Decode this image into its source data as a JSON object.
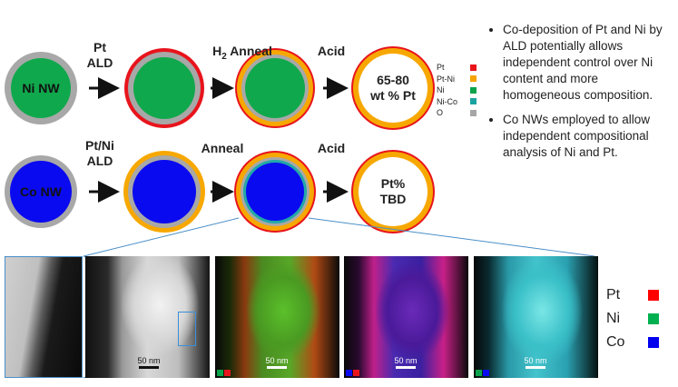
{
  "row1": {
    "start_label": "Ni NW",
    "step1": [
      "Pt",
      "ALD"
    ],
    "step2": "Anneal",
    "step2_prefix": "H",
    "step2_sub": "2",
    "step3": "Acid",
    "result": [
      "65-80",
      "wt % Pt"
    ]
  },
  "row2": {
    "start_label": "Co NW",
    "step1": [
      "Pt/Ni",
      "ALD"
    ],
    "step2": "Anneal",
    "step3": "Acid",
    "result": [
      "Pt%",
      "TBD"
    ]
  },
  "legend_small": [
    {
      "label": "Pt",
      "color": "#e8141c"
    },
    {
      "label": "Pt-Ni",
      "color": "#f5a300"
    },
    {
      "label": "Ni",
      "color": "#0aa34b"
    },
    {
      "label": "Ni-Co",
      "color": "#1aa4a0"
    },
    {
      "label": "O",
      "color": "#a6a6a6"
    }
  ],
  "bullets": [
    "Co-deposition of Pt and Ni by ALD potentially allows independent control over Ni content and more homogeneous composition.",
    "Co NWs employed to allow independent compositional analysis of Ni and Pt."
  ],
  "legend_large": [
    {
      "label": "Pt",
      "color": "#ff0000"
    },
    {
      "label": "Ni",
      "color": "#00b050"
    },
    {
      "label": "Co",
      "color": "#0000ee"
    }
  ],
  "scale_bars": [
    "50 nm",
    "50 nm",
    "50 nm",
    "50 nm"
  ],
  "colors": {
    "ni_green": "#10a84c",
    "co_blue": "#0a0af0",
    "pt_red": "#e8141c",
    "ptni_orange": "#f7a800",
    "oxide_gray": "#a8a8a8",
    "nico_teal": "#22a8a8",
    "callout_line": "#4a8fc8"
  }
}
